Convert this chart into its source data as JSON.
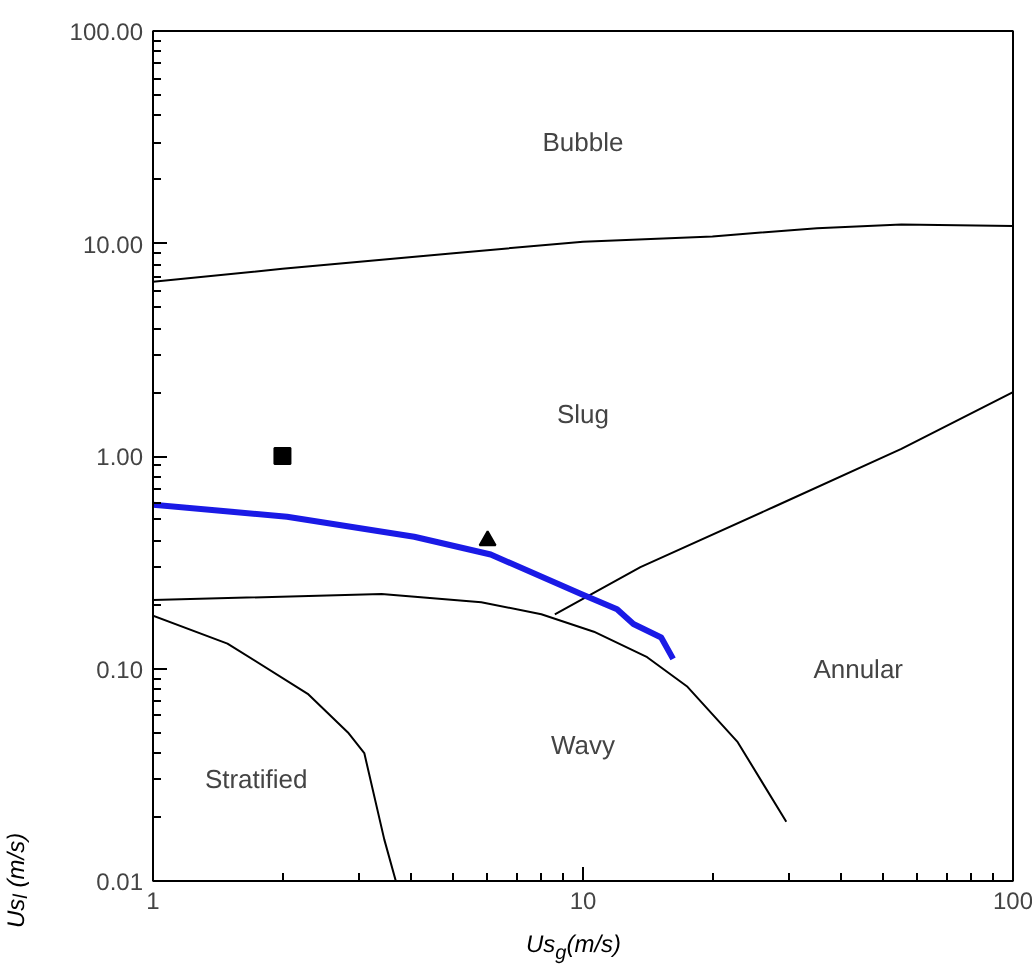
{
  "chart_data": {
    "type": "line",
    "xlabel": "Us$_{g}$(m/s)",
    "ylabel": "Us$_{l}$ (m/s)",
    "log": "xy",
    "xlim": [
      1,
      100
    ],
    "ylim": [
      0.01,
      100
    ],
    "xticks": [
      1,
      10,
      100
    ],
    "yticks": [
      {
        "value": 0.01,
        "label": "0.01"
      },
      {
        "value": 0.1,
        "label": "0.10"
      },
      {
        "value": 1,
        "label": "1.00"
      },
      {
        "value": 10,
        "label": "10.00"
      },
      {
        "value": 100,
        "label": "100.00"
      }
    ],
    "grid": false,
    "series": [
      {
        "color": "#000000",
        "x": [
          1,
          2,
          5,
          10,
          20,
          35,
          55,
          100
        ],
        "values": [
          6.6,
          7.6,
          9.0,
          10.2,
          10.8,
          11.8,
          12.3,
          12.1
        ]
      },
      {
        "color": "#000000",
        "x": [
          8.6,
          13.6,
          28,
          55,
          100
        ],
        "values": [
          0.18,
          0.3,
          0.58,
          1.08,
          2.0
        ]
      },
      {
        "color": "#000000",
        "x": [
          1,
          3.4,
          5.8,
          8.0,
          10.6,
          14.1,
          17.5,
          22.9,
          29.7
        ],
        "values": [
          0.21,
          0.224,
          0.205,
          0.18,
          0.149,
          0.113,
          0.082,
          0.045,
          0.019
        ]
      },
      {
        "color": "#000000",
        "x": [
          1,
          1.49,
          2.29,
          2.84,
          3.1,
          3.45,
          3.67
        ],
        "values": [
          0.177,
          0.131,
          0.076,
          0.05,
          0.04,
          0.0157,
          0.01
        ]
      },
      {
        "color": "#1a1ae6",
        "x": [
          1,
          2.05,
          4.05,
          6.1,
          9.9,
          12.0,
          13.1,
          15.2,
          16.2
        ],
        "values": [
          0.59,
          0.518,
          0.417,
          0.344,
          0.224,
          0.19,
          0.162,
          0.14,
          0.111
        ]
      },
      {
        "type": "scatter",
        "marker": "square",
        "color": "#000000",
        "x": [
          2
        ],
        "values": [
          1.0
        ]
      },
      {
        "type": "scatter",
        "marker": "triangle",
        "color": "#000000",
        "x": [
          6
        ],
        "values": [
          0.4
        ]
      }
    ],
    "annotations": [
      "Bubble",
      "Slug",
      "Annular",
      "Wavy",
      "Stratified"
    ]
  }
}
